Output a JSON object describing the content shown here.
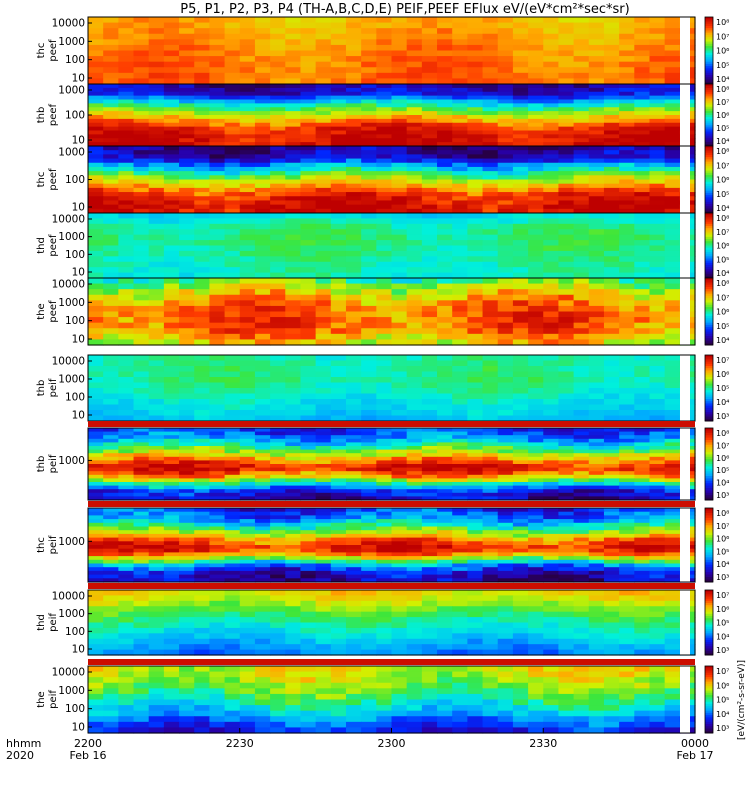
{
  "chart_data": {
    "type": "heatmap",
    "title": "P5, P1, P2, P3, P4 (TH-A,B,C,D,E) PEIF,PEEF EFlux eV/(eV*cm²*sec*sr)",
    "time_axis": {
      "label_top": "hhmm",
      "label_bottom": "2020",
      "ticks": [
        {
          "t": 0,
          "label": "2200",
          "sub": "Feb 16"
        },
        {
          "t": 30,
          "label": "2230",
          "sub": ""
        },
        {
          "t": 60,
          "label": "2300",
          "sub": ""
        },
        {
          "t": 90,
          "label": "2330",
          "sub": ""
        },
        {
          "t": 120,
          "label": "0000",
          "sub": "Feb 17"
        }
      ],
      "range_minutes": [
        0,
        120
      ]
    },
    "colorbar_unit_label": "[eV/(cm²-s-sr-eV)]",
    "panels": [
      {
        "probe": "thc",
        "product": "peef",
        "yticks": [
          "10000",
          "1000",
          "100",
          "10"
        ],
        "cbar_ticks": [
          "10⁸",
          "10⁷",
          "10⁶",
          "10⁵",
          "10⁴"
        ],
        "level_profile": [
          0.74,
          0.76,
          0.78,
          0.8,
          0.82,
          0.82
        ],
        "noise": 0.05,
        "bands": "none"
      },
      {
        "probe": "thb",
        "product": "peef",
        "yticks": [
          "1000",
          "100",
          "10"
        ],
        "cbar_ticks": [
          "10⁸",
          "10⁷",
          "10⁶",
          "10⁵",
          "10⁴"
        ],
        "level_profile": [
          0.1,
          0.15,
          0.4,
          0.6,
          0.75,
          0.9,
          0.96,
          0.97
        ],
        "noise": 0.08,
        "bands": "none"
      },
      {
        "probe": "thc",
        "product": "peef",
        "yticks": [
          "1000",
          "100",
          "10"
        ],
        "cbar_ticks": [
          "10⁸",
          "10⁷",
          "10⁶",
          "10⁵",
          "10⁴"
        ],
        "level_profile": [
          0.08,
          0.12,
          0.35,
          0.55,
          0.72,
          0.88,
          0.96,
          0.97
        ],
        "noise": 0.09,
        "bands": "none"
      },
      {
        "probe": "thd",
        "product": "peef",
        "yticks": [
          "10000",
          "1000",
          "100",
          "10"
        ],
        "cbar_ticks": [
          "10⁸",
          "10⁷",
          "10⁶",
          "10⁵",
          "10⁴"
        ],
        "level_profile": [
          0.42,
          0.5,
          0.52,
          0.5,
          0.48,
          0.46
        ],
        "noise": 0.04,
        "bands": "none"
      },
      {
        "probe": "the",
        "product": "peef",
        "yticks": [
          "10000",
          "1000",
          "100",
          "10"
        ],
        "cbar_ticks": [
          "10⁸",
          "10⁷",
          "10⁶",
          "10⁵",
          "10⁴"
        ],
        "level_profile": [
          0.55,
          0.7,
          0.8,
          0.85,
          0.82,
          0.7
        ],
        "noise": 0.1,
        "bands": "none"
      },
      {
        "probe": "thb",
        "product": "peif",
        "yticks": [
          "10000",
          "1000",
          "100",
          "10"
        ],
        "cbar_ticks": [
          "10⁷",
          "10⁶",
          "10⁵",
          "10⁴",
          "10³"
        ],
        "level_profile": [
          0.48,
          0.5,
          0.5,
          0.46,
          0.42,
          0.38
        ],
        "noise": 0.04,
        "bands": "none"
      },
      {
        "probe": "thb",
        "product": "peif",
        "yticks": [
          "1000"
        ],
        "cbar_ticks": [
          "10⁸",
          "10⁷",
          "10⁶",
          "10⁵",
          "10⁴",
          "10³"
        ],
        "level_profile": [
          0.22,
          0.3,
          0.45,
          0.62,
          0.8,
          0.95,
          0.8,
          0.5,
          0.2,
          0.12
        ],
        "noise": 0.1,
        "bands": "top"
      },
      {
        "probe": "thc",
        "product": "peif",
        "yticks": [
          "1000"
        ],
        "cbar_ticks": [
          "10⁸",
          "10⁷",
          "10⁶",
          "10⁵",
          "10⁴",
          "10³"
        ],
        "level_profile": [
          0.22,
          0.3,
          0.45,
          0.65,
          0.85,
          0.95,
          0.7,
          0.35,
          0.15,
          0.1
        ],
        "noise": 0.1,
        "bands": "top"
      },
      {
        "probe": "thd",
        "product": "peif",
        "yticks": [
          "10000",
          "1000",
          "100",
          "10"
        ],
        "cbar_ticks": [
          "10⁷",
          "10⁶",
          "10⁵",
          "10⁴",
          "10³"
        ],
        "level_profile": [
          0.7,
          0.62,
          0.52,
          0.45,
          0.38,
          0.3
        ],
        "noise": 0.05,
        "bands": "top"
      },
      {
        "probe": "the",
        "product": "peif",
        "yticks": [
          "10000",
          "1000",
          "100",
          "10"
        ],
        "cbar_ticks": [
          "10⁷",
          "10⁶",
          "10⁵",
          "10⁴",
          "10³"
        ],
        "level_profile": [
          0.68,
          0.62,
          0.55,
          0.45,
          0.32,
          0.18
        ],
        "noise": 0.08,
        "bands": "top"
      }
    ]
  }
}
